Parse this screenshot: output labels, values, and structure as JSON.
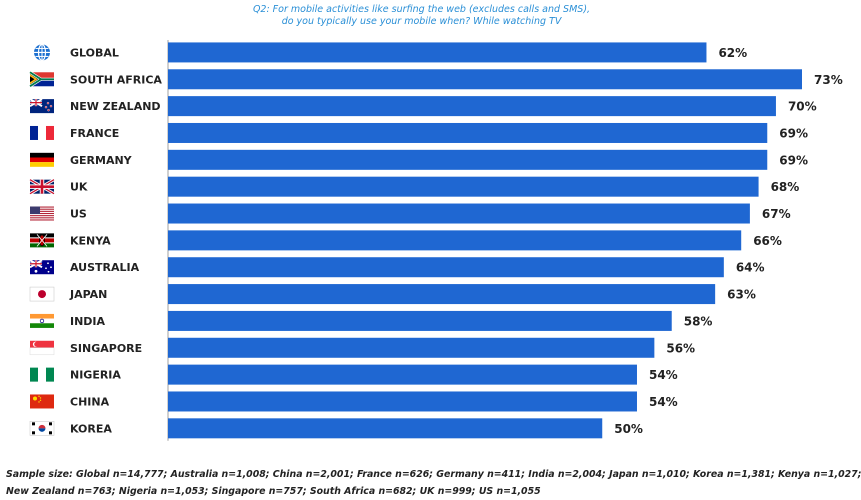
{
  "header": {
    "question_line1": "Q2: For mobile activities like surfing the web (excludes calls and SMS),",
    "question_line2": "do you typically use your mobile when? While watching TV"
  },
  "chart_data": {
    "type": "bar",
    "orientation": "horizontal",
    "categories": [
      "GLOBAL",
      "SOUTH AFRICA",
      "NEW ZEALAND",
      "FRANCE",
      "GERMANY",
      "UK",
      "US",
      "KENYA",
      "AUSTRALIA",
      "JAPAN",
      "INDIA",
      "SINGAPORE",
      "NIGERIA",
      "CHINA",
      "KOREA"
    ],
    "values": [
      62,
      73,
      70,
      69,
      69,
      68,
      67,
      66,
      64,
      63,
      58,
      56,
      54,
      54,
      50
    ],
    "value_labels": [
      "62%",
      "73%",
      "70%",
      "69%",
      "69%",
      "68%",
      "67%",
      "66%",
      "64%",
      "63%",
      "58%",
      "56%",
      "54%",
      "54%",
      "50%"
    ],
    "flag_icons": [
      "globe-icon",
      "flag-south-africa-icon",
      "flag-new-zealand-icon",
      "flag-france-icon",
      "flag-germany-icon",
      "flag-uk-icon",
      "flag-us-icon",
      "flag-kenya-icon",
      "flag-australia-icon",
      "flag-japan-icon",
      "flag-india-icon",
      "flag-singapore-icon",
      "flag-nigeria-icon",
      "flag-china-icon",
      "flag-korea-icon"
    ],
    "xlim": [
      0,
      73
    ],
    "bar_color": "#1f67d2",
    "grid": false,
    "legend": "none",
    "title": "",
    "xlabel": "",
    "ylabel": ""
  },
  "footer": {
    "line1": "Sample size: Global n=14,777; Australia n=1,008; China n=2,001; France n=626; Germany n=411; India n=2,004; Japan n=1,010; Korea n=1,381; Kenya n=1,027;",
    "line2": "New Zealand n=763; Nigeria n=1,053; Singapore n=757; South Africa n=682; UK n=999; US n=1,055"
  }
}
